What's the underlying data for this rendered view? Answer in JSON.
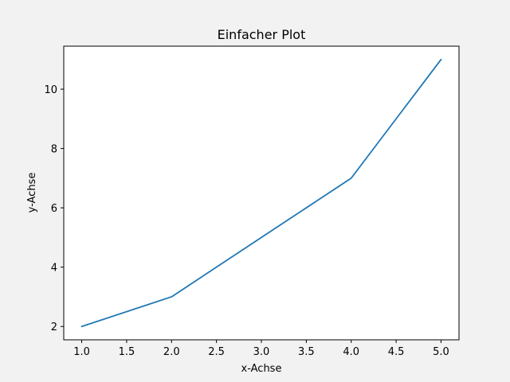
{
  "chart_data": {
    "type": "line",
    "title": "Einfacher Plot",
    "xlabel": "x-Achse",
    "ylabel": "y-Achse",
    "x": [
      1,
      2,
      3,
      4,
      5
    ],
    "series": [
      {
        "values": [
          2,
          3,
          5,
          7,
          11
        ]
      }
    ],
    "xlim": [
      0.8,
      5.2
    ],
    "ylim": [
      1.55,
      11.45
    ],
    "xticks": [
      1.0,
      1.5,
      2.0,
      2.5,
      3.0,
      3.5,
      4.0,
      4.5,
      5.0
    ],
    "xtick_labels": [
      "1.0",
      "1.5",
      "2.0",
      "2.5",
      "3.0",
      "3.5",
      "4.0",
      "4.5",
      "5.0"
    ],
    "yticks": [
      2,
      4,
      6,
      8,
      10
    ],
    "ytick_labels": [
      "2",
      "4",
      "6",
      "8",
      "10"
    ],
    "grid": false,
    "colors": {
      "figure_background": "#f2f2f2",
      "plot_background": "#ffffff",
      "line": "#1f77b4",
      "axes": "#000000"
    }
  }
}
